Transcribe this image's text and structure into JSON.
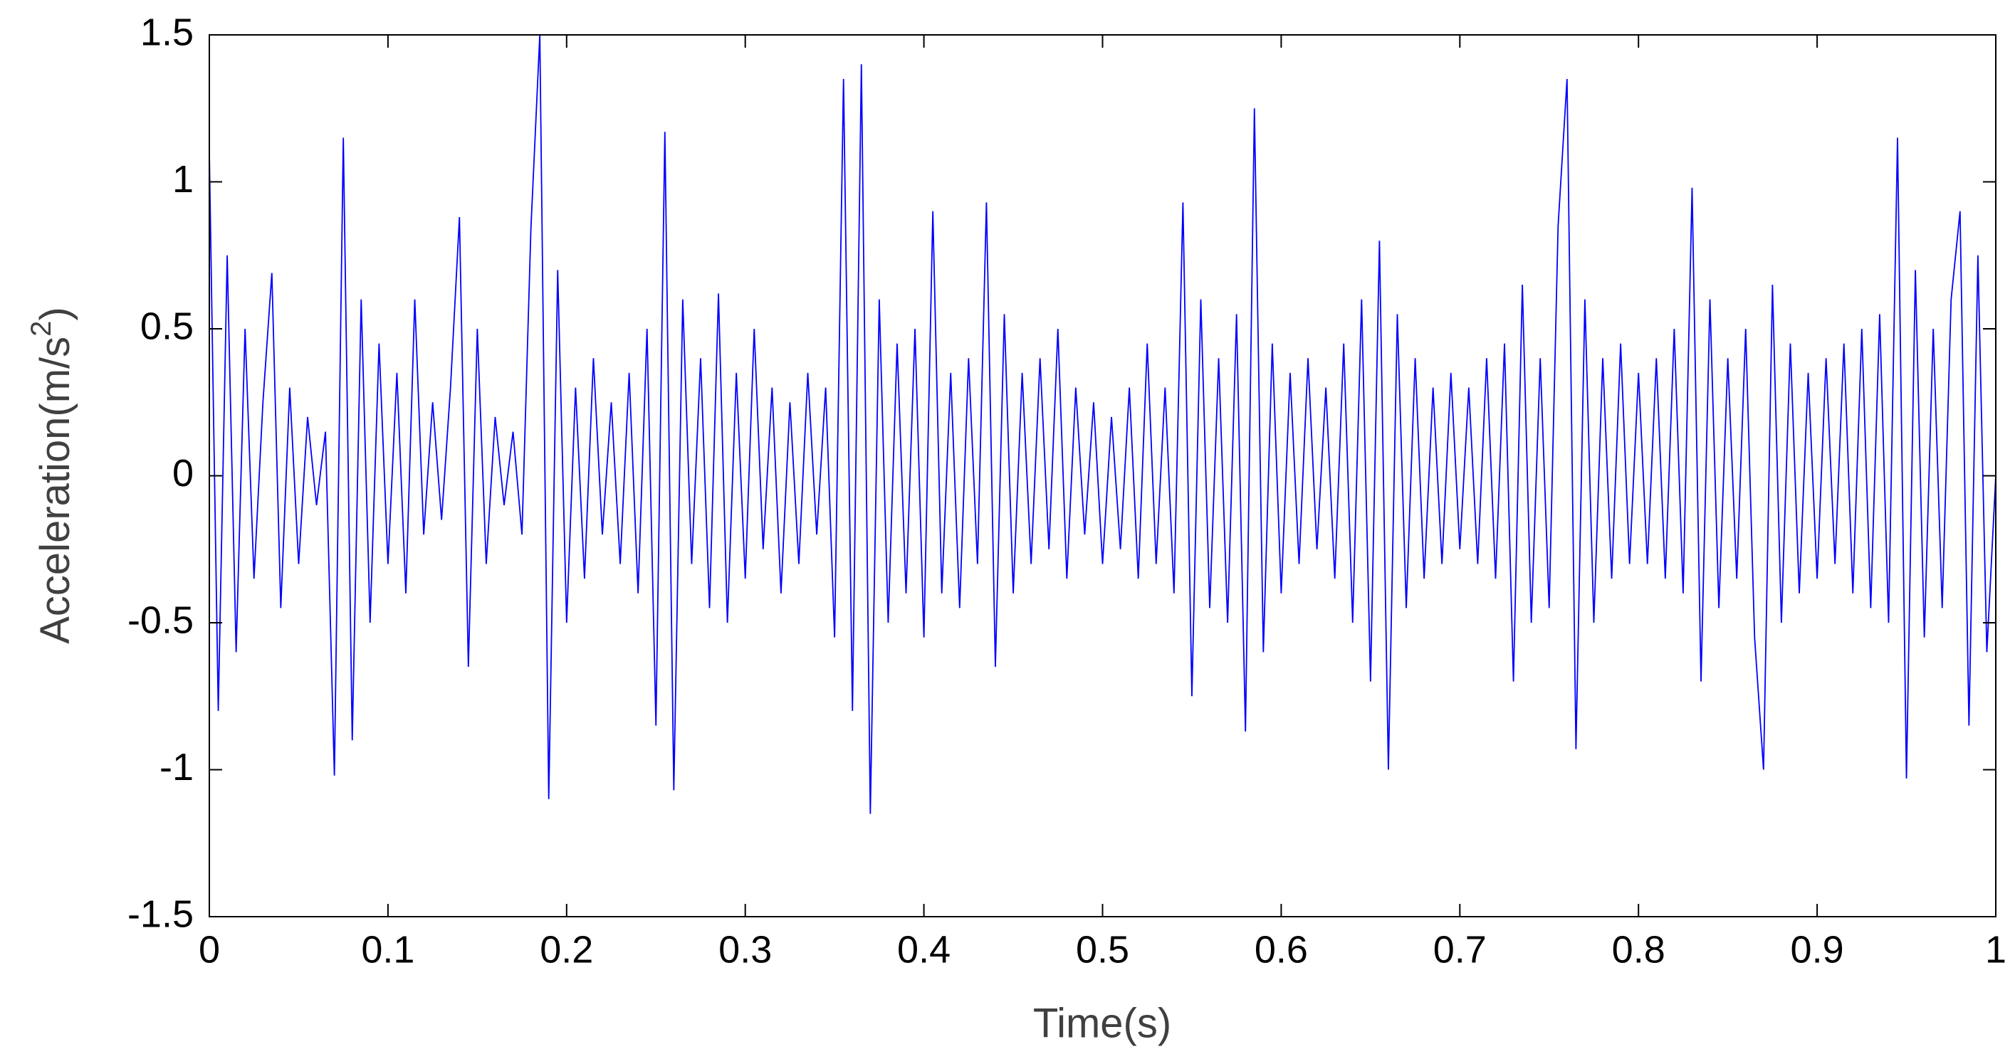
{
  "chart_data": {
    "type": "line",
    "xlabel": "Time(s)",
    "ylabel": [
      "Acceleration(m/s",
      "2",
      ")"
    ],
    "x": [
      0,
      0.005,
      0.01,
      0.015,
      0.02,
      0.025,
      0.03,
      0.035,
      0.04,
      0.045,
      0.05,
      0.055,
      0.06,
      0.065,
      0.07,
      0.075,
      0.08,
      0.085,
      0.09,
      0.095,
      0.1,
      0.105,
      0.11,
      0.115,
      0.12,
      0.125,
      0.13,
      0.135,
      0.14,
      0.145,
      0.15,
      0.155,
      0.16,
      0.165,
      0.17,
      0.175,
      0.18,
      0.185,
      0.19,
      0.195,
      0.2,
      0.205,
      0.21,
      0.215,
      0.22,
      0.225,
      0.23,
      0.235,
      0.24,
      0.245,
      0.25,
      0.255,
      0.26,
      0.265,
      0.27,
      0.275,
      0.28,
      0.285,
      0.29,
      0.295,
      0.3,
      0.305,
      0.31,
      0.315,
      0.32,
      0.325,
      0.33,
      0.335,
      0.34,
      0.345,
      0.35,
      0.355,
      0.36,
      0.365,
      0.37,
      0.375,
      0.38,
      0.385,
      0.39,
      0.395,
      0.4,
      0.405,
      0.41,
      0.415,
      0.42,
      0.425,
      0.43,
      0.435,
      0.44,
      0.445,
      0.45,
      0.455,
      0.46,
      0.465,
      0.47,
      0.475,
      0.48,
      0.485,
      0.49,
      0.495,
      0.5,
      0.505,
      0.51,
      0.515,
      0.52,
      0.525,
      0.53,
      0.535,
      0.54,
      0.545,
      0.55,
      0.555,
      0.56,
      0.565,
      0.57,
      0.575,
      0.58,
      0.585,
      0.59,
      0.595,
      0.6,
      0.605,
      0.61,
      0.615,
      0.62,
      0.625,
      0.63,
      0.635,
      0.64,
      0.645,
      0.65,
      0.655,
      0.66,
      0.665,
      0.67,
      0.675,
      0.68,
      0.685,
      0.69,
      0.695,
      0.7,
      0.705,
      0.71,
      0.715,
      0.72,
      0.725,
      0.73,
      0.735,
      0.74,
      0.745,
      0.75,
      0.755,
      0.76,
      0.765,
      0.77,
      0.775,
      0.78,
      0.785,
      0.79,
      0.795,
      0.8,
      0.805,
      0.81,
      0.815,
      0.82,
      0.825,
      0.83,
      0.835,
      0.84,
      0.845,
      0.85,
      0.855,
      0.86,
      0.865,
      0.87,
      0.875,
      0.88,
      0.885,
      0.89,
      0.895,
      0.9,
      0.905,
      0.91,
      0.915,
      0.92,
      0.925,
      0.93,
      0.935,
      0.94,
      0.945,
      0.95,
      0.955,
      0.96,
      0.965,
      0.97,
      0.975,
      0.98,
      0.985,
      0.99,
      0.995,
      1
    ],
    "series": [
      {
        "color": "#0000ff",
        "values": [
          1.1,
          -0.8,
          0.75,
          -0.6,
          0.5,
          -0.35,
          0.25,
          0.69,
          -0.45,
          0.3,
          -0.3,
          0.2,
          -0.1,
          0.15,
          -1.02,
          1.15,
          -0.9,
          0.6,
          -0.5,
          0.45,
          -0.3,
          0.35,
          -0.4,
          0.6,
          -0.2,
          0.25,
          -0.15,
          0.3,
          0.88,
          -0.65,
          0.5,
          -0.3,
          0.2,
          -0.1,
          0.15,
          -0.2,
          0.84,
          1.5,
          -1.1,
          0.7,
          -0.5,
          0.3,
          -0.35,
          0.4,
          -0.2,
          0.25,
          -0.3,
          0.35,
          -0.4,
          0.5,
          -0.85,
          1.17,
          -1.07,
          0.6,
          -0.3,
          0.4,
          -0.45,
          0.62,
          -0.5,
          0.35,
          -0.35,
          0.5,
          -0.25,
          0.3,
          -0.4,
          0.25,
          -0.3,
          0.35,
          -0.2,
          0.3,
          -0.55,
          1.35,
          -0.8,
          1.4,
          -1.15,
          0.6,
          -0.5,
          0.45,
          -0.4,
          0.5,
          -0.55,
          0.9,
          -0.4,
          0.35,
          -0.45,
          0.4,
          -0.3,
          0.93,
          -0.65,
          0.55,
          -0.4,
          0.35,
          -0.3,
          0.4,
          -0.25,
          0.5,
          -0.35,
          0.3,
          -0.2,
          0.25,
          -0.3,
          0.2,
          -0.25,
          0.3,
          -0.35,
          0.45,
          -0.3,
          0.3,
          -0.4,
          0.93,
          -0.75,
          0.6,
          -0.45,
          0.4,
          -0.5,
          0.55,
          -0.87,
          1.25,
          -0.6,
          0.45,
          -0.4,
          0.35,
          -0.3,
          0.4,
          -0.25,
          0.3,
          -0.35,
          0.45,
          -0.5,
          0.6,
          -0.7,
          0.8,
          -1.0,
          0.55,
          -0.45,
          0.4,
          -0.35,
          0.3,
          -0.3,
          0.35,
          -0.25,
          0.3,
          -0.3,
          0.4,
          -0.35,
          0.45,
          -0.7,
          0.65,
          -0.5,
          0.4,
          -0.45,
          0.85,
          1.35,
          -0.93,
          0.6,
          -0.5,
          0.4,
          -0.35,
          0.45,
          -0.3,
          0.35,
          -0.3,
          0.4,
          -0.35,
          0.5,
          -0.4,
          0.98,
          -0.7,
          0.6,
          -0.45,
          0.4,
          -0.35,
          0.5,
          -0.55,
          -1.0,
          0.65,
          -0.5,
          0.45,
          -0.4,
          0.35,
          -0.35,
          0.4,
          -0.3,
          0.45,
          -0.4,
          0.5,
          -0.45,
          0.55,
          -0.5,
          1.15,
          -1.03,
          0.7,
          -0.55,
          0.5,
          -0.45,
          0.6,
          0.9,
          -0.85,
          0.75,
          -0.6,
          0.0
        ]
      }
    ],
    "xlim": [
      0,
      1
    ],
    "xticks": [
      0,
      0.1,
      0.2,
      0.3,
      0.4,
      0.5,
      0.6,
      0.7,
      0.8,
      0.9,
      1
    ],
    "ylim": [
      -1.5,
      1.5
    ],
    "yticks": [
      -1.5,
      -1,
      -0.5,
      0,
      0.5,
      1,
      1.5
    ],
    "grid": false
  }
}
